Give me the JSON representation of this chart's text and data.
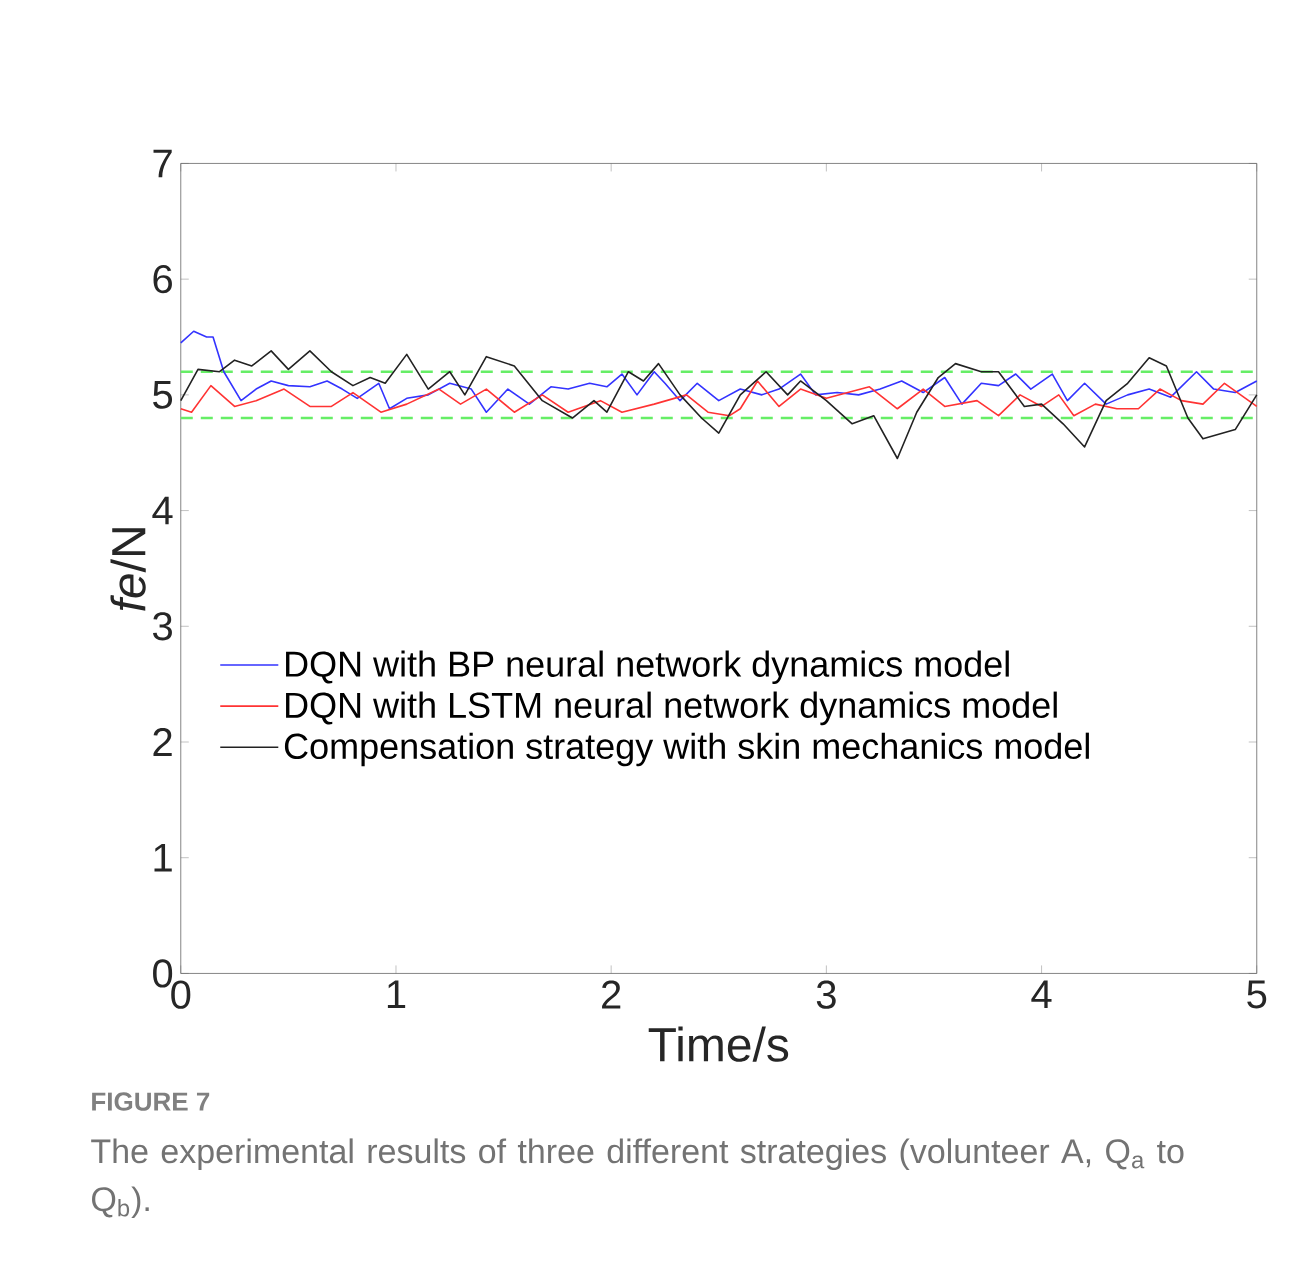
{
  "chart_data": {
    "type": "line",
    "xlabel": "Time/s",
    "ylabel": "*fe*/N",
    "xlim": [
      0,
      5
    ],
    "ylim": [
      0,
      7
    ],
    "xticks": [
      0,
      1,
      2,
      3,
      4,
      5
    ],
    "yticks": [
      0,
      1,
      2,
      3,
      4,
      5,
      6,
      7
    ],
    "legend": "left",
    "grid": false,
    "line_style": "solid",
    "ref_lines": [
      {
        "axis": "y",
        "value": 5.2,
        "color": "#66ee66",
        "line_style": "dashed"
      },
      {
        "axis": "y",
        "value": 4.8,
        "color": "#66ee66",
        "line_style": "dashed"
      }
    ],
    "annotations": [
      "FIGURE 7",
      "The experimental results of three different strategies (volunteer A, Q$_{a}$ to Q$_{b}$)."
    ],
    "series": [
      {
        "name": "DQN with BP neural network dynamics model",
        "color": "#3333ff",
        "x": [
          0,
          0.06,
          0.12,
          0.15,
          0.2,
          0.28,
          0.35,
          0.42,
          0.5,
          0.6,
          0.68,
          0.75,
          0.82,
          0.92,
          0.97,
          1.05,
          1.15,
          1.25,
          1.35,
          1.42,
          1.52,
          1.62,
          1.72,
          1.8,
          1.9,
          1.98,
          2.05,
          2.12,
          2.2,
          2.25,
          2.32,
          2.4,
          2.5,
          2.6,
          2.7,
          2.78,
          2.88,
          2.95,
          3.05,
          3.15,
          3.25,
          3.35,
          3.45,
          3.55,
          3.63,
          3.72,
          3.8,
          3.88,
          3.95,
          4.05,
          4.12,
          4.2,
          4.3,
          4.4,
          4.5,
          4.6,
          4.72,
          4.8,
          4.9,
          5.0
        ],
        "values": [
          5.45,
          5.55,
          5.5,
          5.5,
          5.2,
          4.95,
          5.05,
          5.12,
          5.08,
          5.07,
          5.12,
          5.05,
          4.97,
          5.1,
          4.88,
          4.97,
          5.0,
          5.1,
          5.05,
          4.85,
          5.05,
          4.92,
          5.07,
          5.05,
          5.1,
          5.07,
          5.18,
          5.0,
          5.2,
          5.1,
          4.95,
          5.1,
          4.95,
          5.05,
          5.0,
          5.05,
          5.18,
          5.0,
          5.02,
          5.0,
          5.05,
          5.12,
          5.02,
          5.15,
          4.92,
          5.1,
          5.08,
          5.18,
          5.05,
          5.18,
          4.95,
          5.1,
          4.92,
          5.0,
          5.05,
          4.98,
          5.2,
          5.05,
          5.02,
          5.12
        ]
      },
      {
        "name": "DQN with LSTM neural network dynamics model",
        "color": "#ff3333",
        "x": [
          0,
          0.05,
          0.14,
          0.25,
          0.35,
          0.48,
          0.6,
          0.7,
          0.8,
          0.93,
          1.05,
          1.2,
          1.3,
          1.42,
          1.55,
          1.68,
          1.8,
          1.95,
          2.05,
          2.2,
          2.35,
          2.45,
          2.55,
          2.6,
          2.68,
          2.78,
          2.88,
          3.0,
          3.1,
          3.2,
          3.33,
          3.45,
          3.55,
          3.7,
          3.8,
          3.9,
          4.0,
          4.08,
          4.15,
          4.25,
          4.35,
          4.45,
          4.55,
          4.65,
          4.75,
          4.85,
          5.0
        ],
        "values": [
          4.88,
          4.85,
          5.08,
          4.9,
          4.95,
          5.05,
          4.9,
          4.9,
          5.02,
          4.85,
          4.92,
          5.05,
          4.92,
          5.05,
          4.85,
          5.0,
          4.85,
          4.95,
          4.85,
          4.92,
          5.0,
          4.85,
          4.82,
          4.88,
          5.12,
          4.9,
          5.05,
          4.97,
          5.02,
          5.07,
          4.88,
          5.05,
          4.9,
          4.95,
          4.82,
          5.0,
          4.9,
          5.0,
          4.82,
          4.92,
          4.88,
          4.88,
          5.05,
          4.95,
          4.92,
          5.1,
          4.9
        ]
      },
      {
        "name": "Compensation strategy with skin mechanics model",
        "color": "#222222",
        "x": [
          0,
          0.08,
          0.18,
          0.25,
          0.33,
          0.42,
          0.5,
          0.6,
          0.7,
          0.8,
          0.88,
          0.95,
          1.05,
          1.15,
          1.25,
          1.32,
          1.42,
          1.55,
          1.68,
          1.82,
          1.92,
          1.98,
          2.08,
          2.15,
          2.22,
          2.32,
          2.42,
          2.5,
          2.6,
          2.72,
          2.82,
          2.88,
          3.0,
          3.12,
          3.22,
          3.33,
          3.42,
          3.52,
          3.6,
          3.72,
          3.8,
          3.92,
          4.0,
          4.1,
          4.2,
          4.3,
          4.4,
          4.5,
          4.58,
          4.68,
          4.75,
          4.9,
          5.0
        ],
        "values": [
          4.95,
          5.22,
          5.2,
          5.3,
          5.25,
          5.38,
          5.22,
          5.38,
          5.2,
          5.08,
          5.15,
          5.1,
          5.35,
          5.05,
          5.2,
          5.0,
          5.33,
          5.25,
          4.95,
          4.8,
          4.95,
          4.85,
          5.2,
          5.12,
          5.27,
          5.0,
          4.8,
          4.67,
          5.0,
          5.2,
          5.0,
          5.12,
          4.95,
          4.75,
          4.82,
          4.45,
          4.85,
          5.15,
          5.27,
          5.2,
          5.2,
          4.9,
          4.92,
          4.75,
          4.55,
          4.95,
          5.1,
          5.32,
          5.25,
          4.8,
          4.62,
          4.7,
          5.0
        ]
      }
    ]
  }
}
